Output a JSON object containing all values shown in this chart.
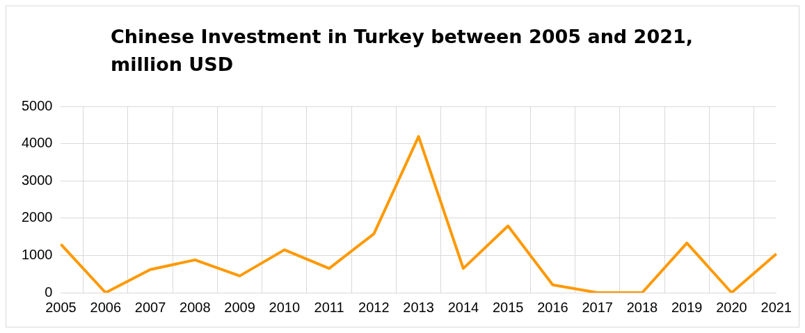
{
  "chart_data": {
    "type": "line",
    "title": "Chinese Investment in Turkey between 2005 and 2021, million USD",
    "categories": [
      "2005",
      "2006",
      "2007",
      "2008",
      "2009",
      "2010",
      "2011",
      "2012",
      "2013",
      "2014",
      "2015",
      "2016",
      "2017",
      "2018",
      "2019",
      "2020",
      "2021"
    ],
    "series": [
      {
        "color": "#ff9900",
        "values": [
          1300,
          0,
          620,
          880,
          450,
          1150,
          650,
          1580,
          4190,
          650,
          1790,
          210,
          0,
          0,
          1330,
          0,
          1040
        ]
      }
    ],
    "ylim": [
      0,
      5000
    ],
    "yticks": [
      0,
      1000,
      2000,
      3000,
      4000,
      5000
    ],
    "grid": true,
    "legend": false,
    "marker": "none",
    "line_style": "solid"
  }
}
